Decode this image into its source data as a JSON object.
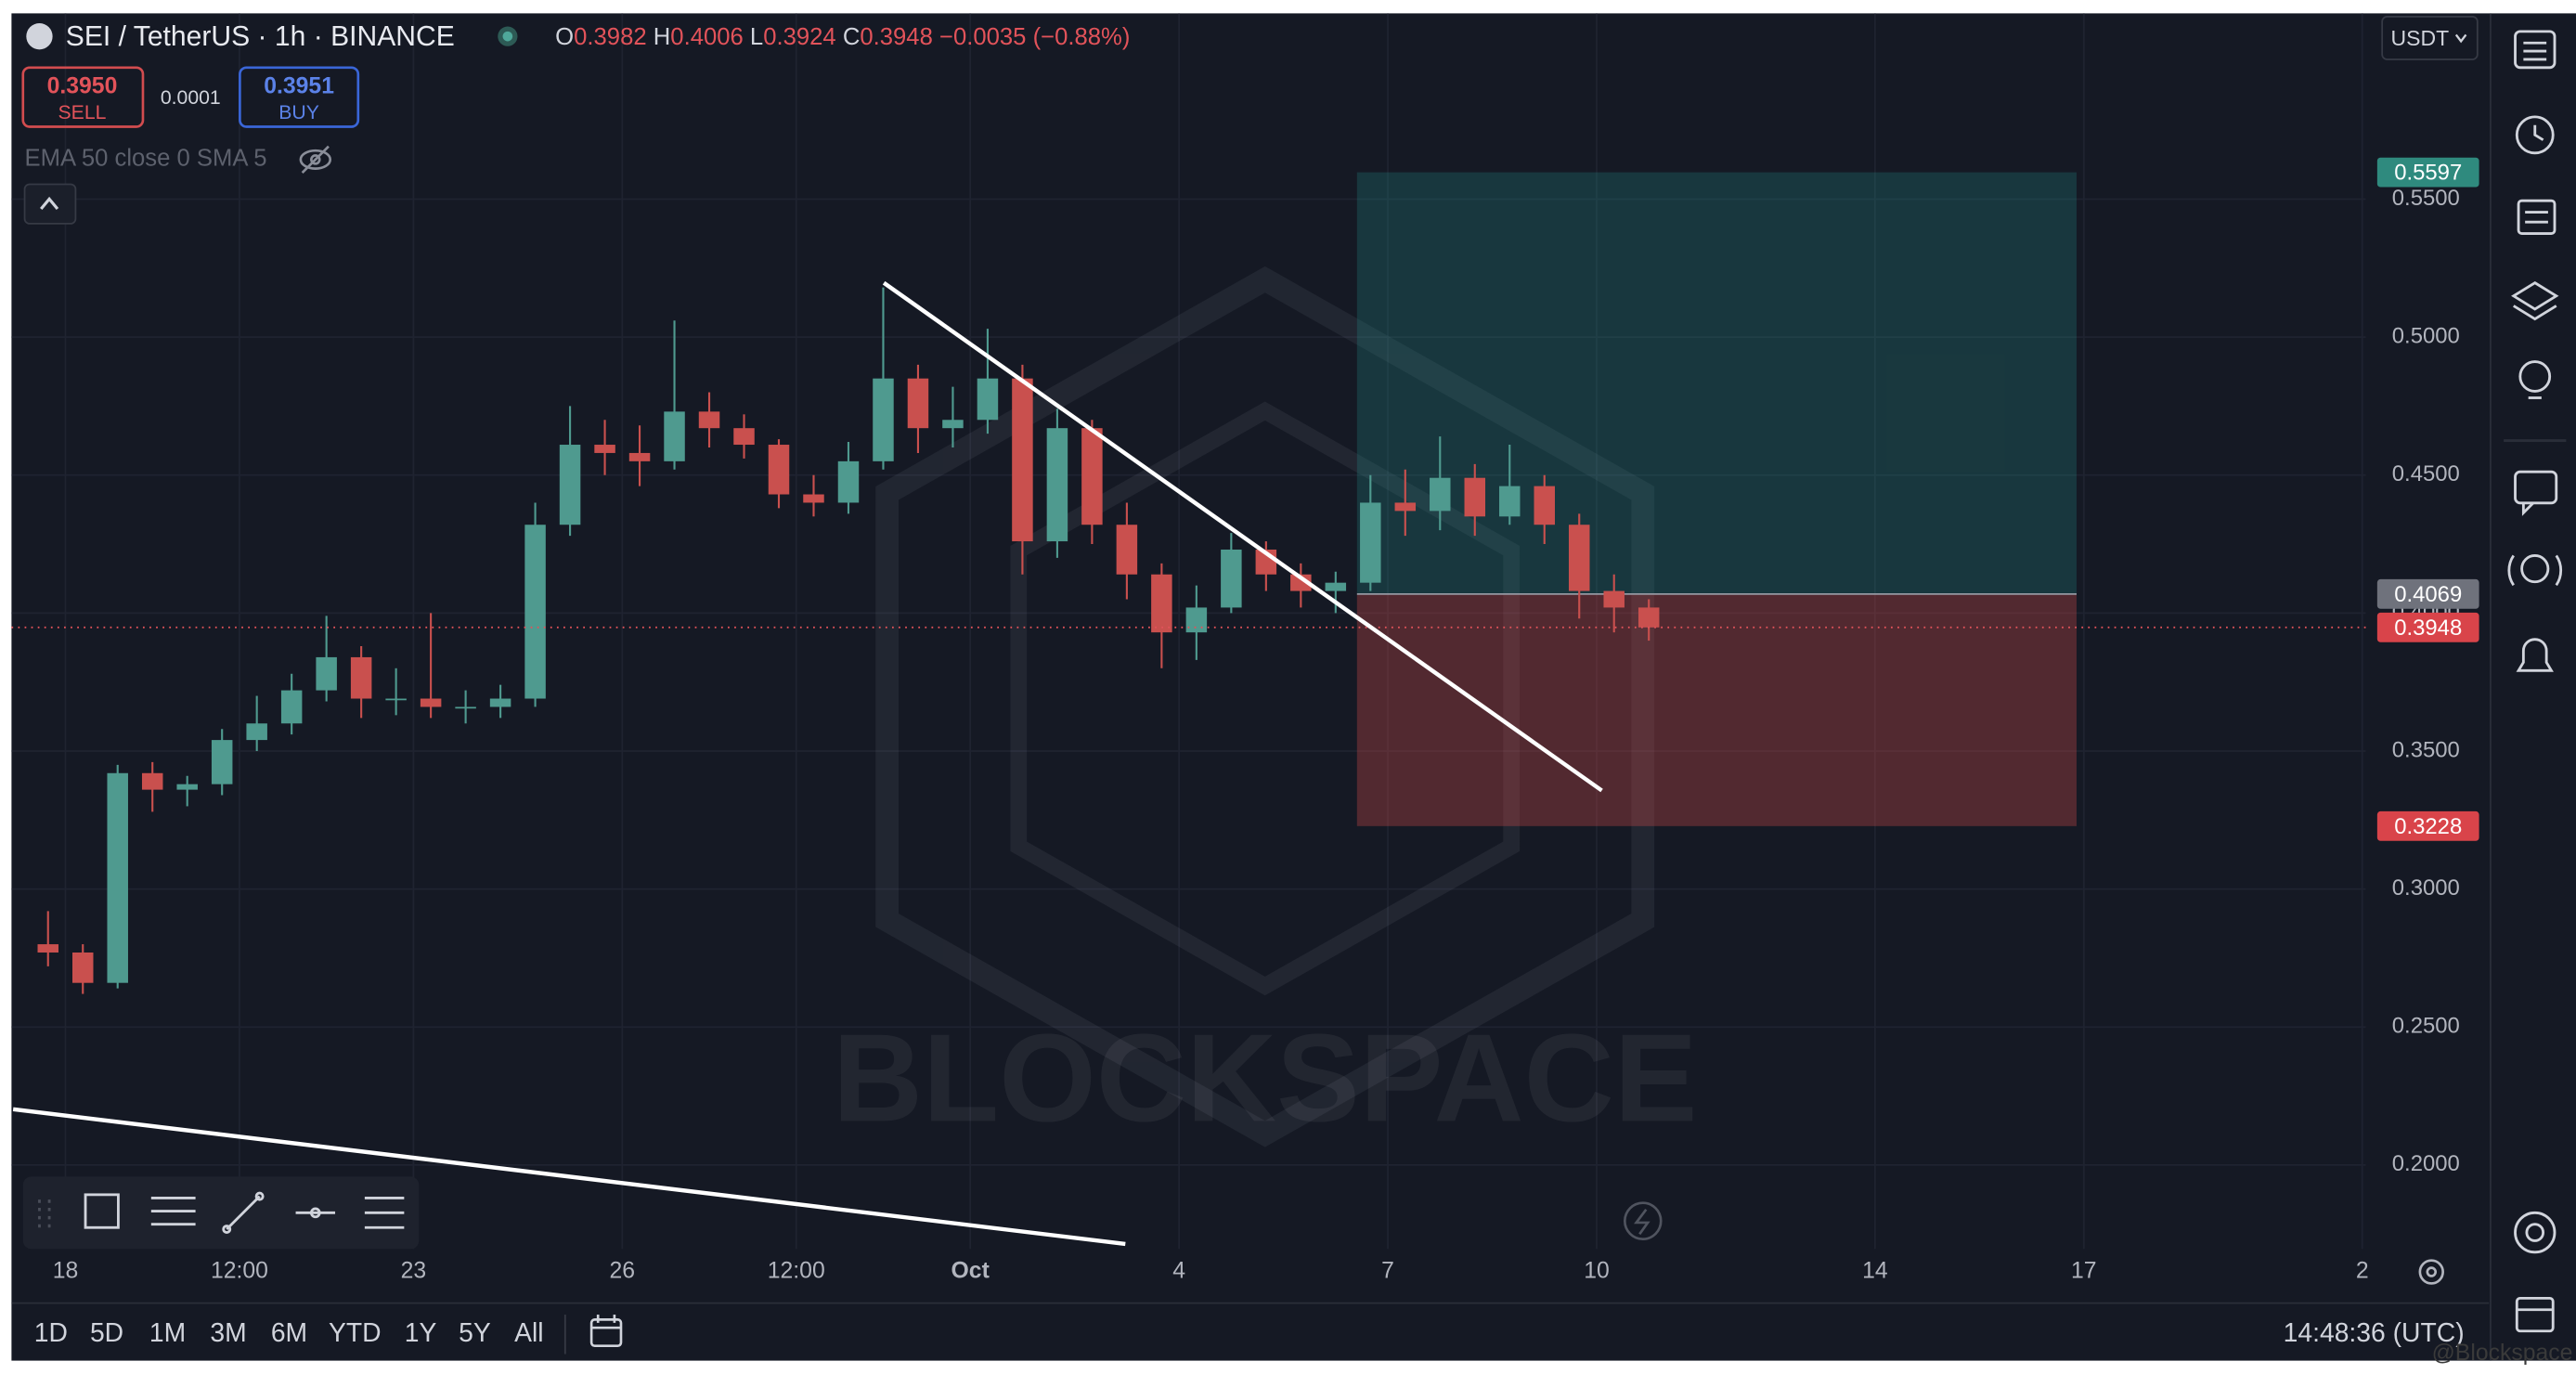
{
  "header": {
    "symbol": "SEI / TetherUS · 1h · BINANCE",
    "ohlc": [
      {
        "label": "O",
        "value": "0.3982"
      },
      {
        "label": "H",
        "value": "0.4006"
      },
      {
        "label": "L",
        "value": "0.3924"
      },
      {
        "label": "C",
        "value": "0.3948"
      }
    ],
    "change": "−0.0035 (−0.88%)"
  },
  "trade": {
    "sell": {
      "price": "0.3950",
      "label": "SELL"
    },
    "spread": "0.0001",
    "buy": {
      "price": "0.3951",
      "label": "BUY"
    }
  },
  "indicator": "EMA 50 close 0 SMA 5",
  "currency": "USDT",
  "watermark": "BLOCKSPACE",
  "credit": "@Blockspace",
  "timeframes": [
    "1D",
    "5D",
    "1M",
    "3M",
    "6M",
    "YTD",
    "1Y",
    "5Y",
    "All"
  ],
  "clock": "14:48:36 (UTC)",
  "chart_data": {
    "type": "candlestick",
    "open": [
      0.28,
      0.277,
      0.266,
      0.342,
      0.336,
      0.338,
      0.354,
      0.36,
      0.372,
      0.384,
      0.369,
      0.369,
      0.366,
      0.366,
      0.369,
      0.432,
      0.461,
      0.458,
      0.455,
      0.473,
      0.467,
      0.461,
      0.443,
      0.44,
      0.455,
      0.485,
      0.467,
      0.47,
      0.485,
      0.426,
      0.467,
      0.432,
      0.414,
      0.393,
      0.402,
      0.423,
      0.414,
      0.408,
      0.411,
      0.44,
      0.437,
      0.449,
      0.435,
      0.446,
      0.432,
      0.408,
      0.402
    ],
    "high": [
      0.292,
      0.28,
      0.345,
      0.346,
      0.341,
      0.358,
      0.37,
      0.378,
      0.399,
      0.388,
      0.38,
      0.4,
      0.372,
      0.374,
      0.44,
      0.475,
      0.47,
      0.468,
      0.506,
      0.48,
      0.472,
      0.463,
      0.45,
      0.462,
      0.518,
      0.49,
      0.482,
      0.503,
      0.49,
      0.474,
      0.47,
      0.44,
      0.418,
      0.41,
      0.429,
      0.426,
      0.418,
      0.415,
      0.45,
      0.452,
      0.464,
      0.454,
      0.461,
      0.45,
      0.436,
      0.414,
      0.405
    ],
    "low": [
      0.272,
      0.262,
      0.264,
      0.328,
      0.33,
      0.334,
      0.35,
      0.356,
      0.368,
      0.362,
      0.363,
      0.362,
      0.36,
      0.362,
      0.366,
      0.428,
      0.45,
      0.446,
      0.452,
      0.46,
      0.456,
      0.438,
      0.435,
      0.436,
      0.452,
      0.458,
      0.46,
      0.465,
      0.414,
      0.42,
      0.425,
      0.405,
      0.38,
      0.383,
      0.4,
      0.408,
      0.402,
      0.4,
      0.408,
      0.428,
      0.43,
      0.428,
      0.432,
      0.425,
      0.398,
      0.393,
      0.39
    ],
    "close": [
      0.277,
      0.266,
      0.342,
      0.336,
      0.338,
      0.354,
      0.36,
      0.372,
      0.384,
      0.369,
      0.369,
      0.366,
      0.366,
      0.369,
      0.432,
      0.461,
      0.458,
      0.455,
      0.473,
      0.467,
      0.461,
      0.443,
      0.44,
      0.455,
      0.485,
      0.467,
      0.47,
      0.485,
      0.426,
      0.467,
      0.432,
      0.414,
      0.393,
      0.402,
      0.423,
      0.414,
      0.408,
      0.411,
      0.44,
      0.437,
      0.449,
      0.435,
      0.446,
      0.432,
      0.408,
      0.402,
      0.3948
    ],
    "up_color": "#4f9a8f",
    "down_color": "#c9504e",
    "xlim": [
      -0.55,
      67.1
    ],
    "xticks": [
      {
        "value": 1,
        "label": "18"
      },
      {
        "value": 6,
        "label": "12:00"
      },
      {
        "value": 11,
        "label": "23"
      },
      {
        "value": 17,
        "label": "26"
      },
      {
        "value": 22,
        "label": "12:00"
      },
      {
        "value": 27,
        "label": "Oct"
      },
      {
        "value": 33,
        "label": "4"
      },
      {
        "value": 39,
        "label": "7"
      },
      {
        "value": 45,
        "label": "10"
      },
      {
        "value": 53,
        "label": "14"
      },
      {
        "value": 59,
        "label": "17"
      },
      {
        "value": 67,
        "label": "2"
      }
    ],
    "ylim": [
      0.1696,
      0.6173
    ],
    "yticks": [
      {
        "value": 0.2,
        "label": "0.2000"
      },
      {
        "value": 0.25,
        "label": "0.2500"
      },
      {
        "value": 0.3,
        "label": "0.3000"
      },
      {
        "value": 0.35,
        "label": "0.3500"
      },
      {
        "value": 0.4,
        "label": "0.4000"
      },
      {
        "value": 0.45,
        "label": "0.4500"
      },
      {
        "value": 0.5,
        "label": "0.5000"
      },
      {
        "value": 0.55,
        "label": "0.5500"
      }
    ],
    "grid": true,
    "last_price": 0.3948,
    "position": {
      "target": 0.5597,
      "entry": 0.4069,
      "stop": 0.3228
    }
  }
}
